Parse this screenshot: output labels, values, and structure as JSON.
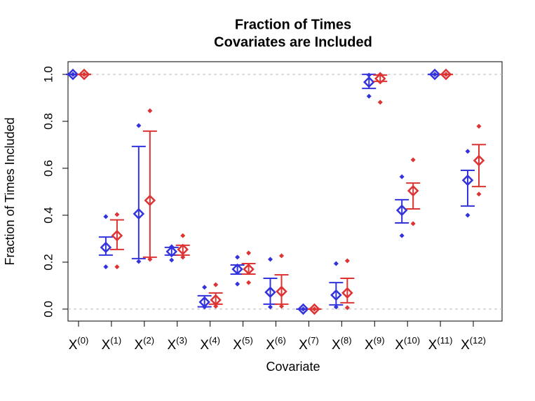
{
  "chart_data": {
    "type": "range_dots",
    "title": [
      "Fraction of Times",
      "Covariates are Included"
    ],
    "x_label": "Covariate",
    "y_label": "Fraction of Times Included",
    "categories": [
      {
        "base": "X",
        "sup": "(0)"
      },
      {
        "base": "X",
        "sup": "(1)"
      },
      {
        "base": "X",
        "sup": "(2)"
      },
      {
        "base": "X",
        "sup": "(3)"
      },
      {
        "base": "X",
        "sup": "(4)"
      },
      {
        "base": "X",
        "sup": "(5)"
      },
      {
        "base": "X",
        "sup": "(6)"
      },
      {
        "base": "X",
        "sup": "(7)"
      },
      {
        "base": "X",
        "sup": "(8)"
      },
      {
        "base": "X",
        "sup": "(9)"
      },
      {
        "base": "X",
        "sup": "(10)"
      },
      {
        "base": "X",
        "sup": "(11)"
      },
      {
        "base": "X",
        "sup": "(12)"
      }
    ],
    "series": [
      {
        "color": "#3333dd",
        "mean": [
          1.0,
          0.263,
          0.406,
          0.245,
          0.03,
          0.17,
          0.072,
          0.0,
          0.06,
          0.967,
          0.421,
          1.0,
          0.549
        ],
        "lower": [
          1.0,
          0.23,
          0.215,
          0.23,
          0.01,
          0.149,
          0.021,
          0.0,
          0.018,
          0.94,
          0.367,
          1.0,
          0.439
        ],
        "upper": [
          1.0,
          0.307,
          0.693,
          0.263,
          0.057,
          0.188,
          0.131,
          0.0,
          0.113,
          1.0,
          0.466,
          1.0,
          0.591
        ],
        "min": [
          1.0,
          0.18,
          0.203,
          0.209,
          0.009,
          0.107,
          0.009,
          0.0,
          0.009,
          0.907,
          0.313,
          1.0,
          0.4
        ],
        "max": [
          1.0,
          0.394,
          0.782,
          0.266,
          0.093,
          0.221,
          0.212,
          0.0,
          0.194,
          0.997,
          0.564,
          1.0,
          0.672
        ]
      },
      {
        "color": "#dd3333",
        "mean": [
          1.0,
          0.313,
          0.463,
          0.254,
          0.039,
          0.17,
          0.075,
          0.0,
          0.069,
          0.982,
          0.504,
          1.0,
          0.633
        ],
        "lower": [
          1.0,
          0.254,
          0.221,
          0.23,
          0.021,
          0.149,
          0.021,
          0.0,
          0.027,
          0.97,
          0.427,
          1.0,
          0.522
        ],
        "upper": [
          1.0,
          0.38,
          0.758,
          0.272,
          0.069,
          0.194,
          0.146,
          0.0,
          0.131,
          0.997,
          0.537,
          1.0,
          0.701
        ],
        "min": [
          1.0,
          0.18,
          0.212,
          0.221,
          0.012,
          0.113,
          0.012,
          0.0,
          0.006,
          0.881,
          0.364,
          1.0,
          0.49
        ],
        "max": [
          1.0,
          0.403,
          0.845,
          0.313,
          0.104,
          0.239,
          0.227,
          0.0,
          0.206,
          1.0,
          0.636,
          1.0,
          0.779
        ]
      }
    ],
    "ylim": [
      -0.051,
      1.054
    ],
    "yticks": [
      {
        "value": 0,
        "label": "0.0"
      },
      {
        "value": 0.2,
        "label": "0.2"
      },
      {
        "value": 0.4,
        "label": "0.4"
      },
      {
        "value": 0.6,
        "label": "0.6"
      },
      {
        "value": 0.8,
        "label": "0.8"
      },
      {
        "value": 1,
        "label": "1.0"
      }
    ],
    "hlines": [
      0,
      1
    ]
  }
}
